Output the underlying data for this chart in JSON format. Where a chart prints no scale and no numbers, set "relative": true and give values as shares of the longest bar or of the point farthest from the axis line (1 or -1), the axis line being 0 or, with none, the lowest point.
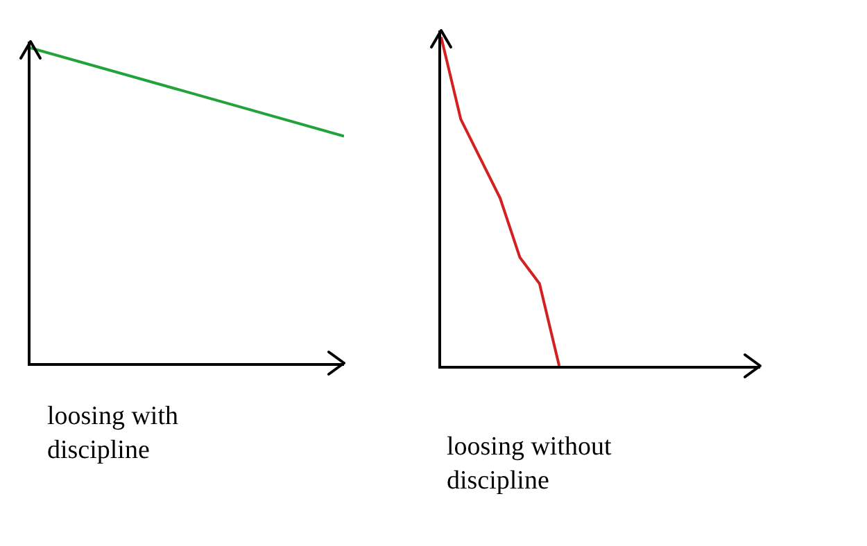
{
  "chart_data": [
    {
      "type": "line",
      "relative": true,
      "xlabel": "loosing with discipline",
      "categories": [
        null,
        null
      ],
      "series": [
        {
          "color": "#22a33a",
          "values": [
            1,
            0.72
          ]
        }
      ]
    },
    {
      "type": "line",
      "relative": true,
      "xlabel": "loosing without discipline",
      "categories": [
        null,
        null,
        null,
        null,
        null,
        null,
        null
      ],
      "series": [
        {
          "color": "#d42020",
          "values": [
            1,
            0.75,
            0.63,
            0.51,
            0.33,
            0.25,
            0
          ]
        }
      ]
    }
  ]
}
